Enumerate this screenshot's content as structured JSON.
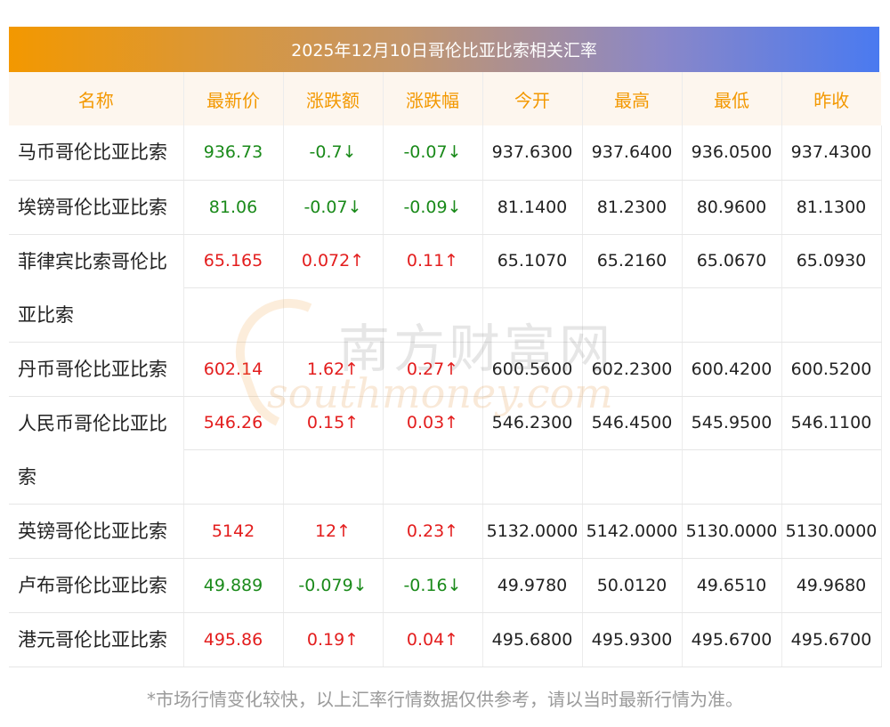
{
  "title": "2025年12月10日哥伦比亚比索相关汇率",
  "headers": [
    "名称",
    "最新价",
    "涨跌额",
    "涨跌幅",
    "今开",
    "最高",
    "最低",
    "昨收"
  ],
  "rows": [
    {
      "name": "马币哥伦比亚比索",
      "latest": "936.73",
      "change": "-0.7↓",
      "pct": "-0.07↓",
      "open": "937.6300",
      "high": "937.6400",
      "low": "936.0500",
      "prev": "937.4300",
      "dir": "down",
      "lines": 1
    },
    {
      "name": "埃镑哥伦比亚比索",
      "latest": "81.06",
      "change": "-0.07↓",
      "pct": "-0.09↓",
      "open": "81.1400",
      "high": "81.2300",
      "low": "80.9600",
      "prev": "81.1300",
      "dir": "down",
      "lines": 1
    },
    {
      "name": "菲律宾比索哥伦比亚比索",
      "latest": "65.165",
      "change": "0.072↑",
      "pct": "0.11↑",
      "open": "65.1070",
      "high": "65.2160",
      "low": "65.0670",
      "prev": "65.0930",
      "dir": "up",
      "lines": 2
    },
    {
      "name": "丹币哥伦比亚比索",
      "latest": "602.14",
      "change": "1.62↑",
      "pct": "0.27↑",
      "open": "600.5600",
      "high": "602.2300",
      "low": "600.4200",
      "prev": "600.5200",
      "dir": "up",
      "lines": 1
    },
    {
      "name": "人民币哥伦比亚比索",
      "latest": "546.26",
      "change": "0.15↑",
      "pct": "0.03↑",
      "open": "546.2300",
      "high": "546.4500",
      "low": "545.9500",
      "prev": "546.1100",
      "dir": "up",
      "lines": 2
    },
    {
      "name": "英镑哥伦比亚比索",
      "latest": "5142",
      "change": "12↑",
      "pct": "0.23↑",
      "open": "5132.0000",
      "high": "5142.0000",
      "low": "5130.0000",
      "prev": "5130.0000",
      "dir": "up",
      "lines": 1
    },
    {
      "name": "卢布哥伦比亚比索",
      "latest": "49.889",
      "change": "-0.079↓",
      "pct": "-0.16↓",
      "open": "49.9780",
      "high": "50.0120",
      "low": "49.6510",
      "prev": "49.9680",
      "dir": "down",
      "lines": 1
    },
    {
      "name": "港元哥伦比亚比索",
      "latest": "495.86",
      "change": "0.19↑",
      "pct": "0.04↑",
      "open": "495.6800",
      "high": "495.9300",
      "low": "495.6700",
      "prev": "495.6700",
      "dir": "up",
      "lines": 1
    }
  ],
  "watermark": {
    "cn": "南方财富网",
    "en": "southmoney.com"
  },
  "footnote": "*市场行情变化较快，以上汇率行情数据仅供参考，请以当时最新行情为准。",
  "colors": {
    "up": "#e31d1d",
    "down": "#1a8a1a",
    "header_text": "#f39800",
    "header_bg": "#fdf6ee"
  }
}
